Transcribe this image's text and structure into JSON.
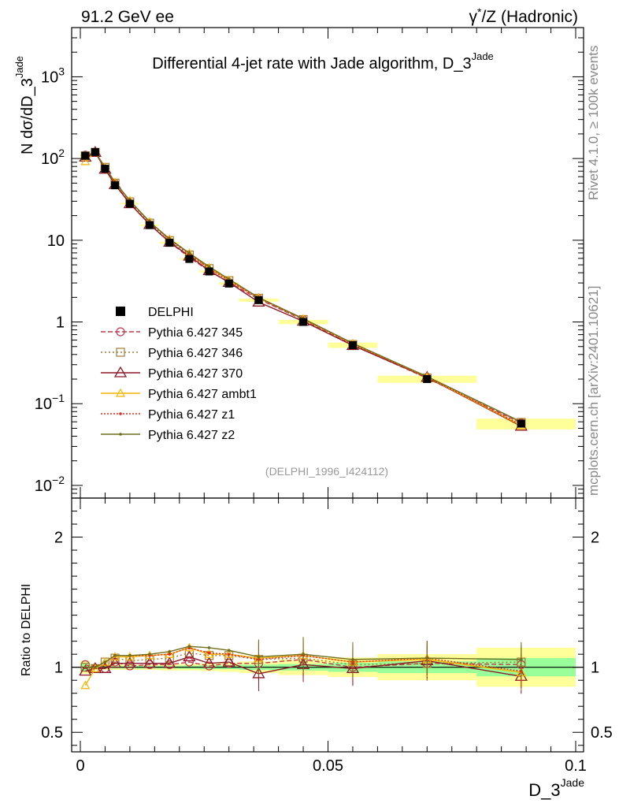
{
  "header": {
    "left": "91.2 GeV ee",
    "right_sup": "*",
    "right_main": "/Z (Hadronic)",
    "right_greek": "γ"
  },
  "side_labels": {
    "rivet": "Rivet 4.1.0, ≥ 100k events",
    "mcplots": "mcplots.cern.ch [arXiv:2401.10621]"
  },
  "colors": {
    "data": "#000000",
    "p345": "#c0394f",
    "p346": "#a47a33",
    "p370": "#8b1a26",
    "ambt1": "#f5b400",
    "z1": "#e52618",
    "z2": "#6e6e1e",
    "band_inner": "#99ff99",
    "band_outer": "#ffff99"
  },
  "chart_data": [
    {
      "type": "line",
      "panel": "main",
      "title": "Differential 4-jet rate with Jade algorithm, D_3",
      "title_sup": "Jade",
      "ylabel": "N  dσ/dD_3",
      "ylabel_sup": "Jade",
      "yscale": "log",
      "ylim": [
        0.007,
        4000
      ],
      "xlim": [
        -0.002,
        0.1
      ],
      "yticks": [
        {
          "v": 0.01,
          "base": "10",
          "exp": "−2"
        },
        {
          "v": 0.1,
          "base": "10",
          "exp": "−1"
        },
        {
          "v": 1,
          "base": "1",
          "exp": ""
        },
        {
          "v": 10,
          "base": "10",
          "exp": ""
        },
        {
          "v": 100,
          "base": "10",
          "exp": "2"
        },
        {
          "v": 1000,
          "base": "10",
          "exp": "3"
        }
      ],
      "annotation": "(DELPHI_1996_I424112)",
      "x": [
        0.001,
        0.003,
        0.005,
        0.007,
        0.01,
        0.014,
        0.018,
        0.022,
        0.026,
        0.03,
        0.036,
        0.045,
        0.055,
        0.07,
        0.089
      ],
      "data": {
        "name": "DELPHI",
        "values": [
          108,
          120,
          75,
          47,
          28,
          15.3,
          9.3,
          5.9,
          4.15,
          2.95,
          1.85,
          1.0,
          0.52,
          0.2,
          0.057
        ],
        "errors_rel": [
          0.04,
          0.02,
          0.02,
          0.02,
          0.02,
          0.02,
          0.02,
          0.02,
          0.03,
          0.03,
          0.03,
          0.04,
          0.05,
          0.06,
          0.09
        ]
      },
      "series": [
        {
          "name": "Pythia 6.427 345",
          "key": "p345",
          "dash": "6,3",
          "marker": "circle",
          "values": [
            110,
            119,
            74,
            49,
            28.2,
            15.6,
            9.5,
            6.15,
            4.2,
            3.05,
            1.9,
            1.06,
            0.52,
            0.205,
            0.058
          ]
        },
        {
          "name": "Pythia 6.427 346",
          "key": "p346",
          "dash": "2,3",
          "marker": "square",
          "values": [
            108,
            119,
            78,
            50,
            29.5,
            16.2,
            9.9,
            6.6,
            4.5,
            3.2,
            1.95,
            1.07,
            0.53,
            0.206,
            0.059
          ]
        },
        {
          "name": "Pythia 6.427 370",
          "key": "p370",
          "dash": "",
          "marker": "triangle",
          "values": [
            104,
            119,
            74,
            48,
            28.0,
            15.6,
            9.45,
            6.4,
            4.25,
            3.05,
            1.75,
            1.02,
            0.515,
            0.21,
            0.053
          ]
        },
        {
          "name": "Pythia 6.427 ambt1",
          "key": "ambt1",
          "dash": "",
          "marker": "triangle-small",
          "values": [
            92,
            119,
            78,
            51,
            30.5,
            16.8,
            10.3,
            6.9,
            4.6,
            3.25,
            1.98,
            1.09,
            0.54,
            0.213,
            0.054
          ]
        },
        {
          "name": "Pythia 6.427 z1",
          "key": "z1",
          "dash": "2,2",
          "marker": "dot",
          "values": [
            107,
            120,
            78,
            51.5,
            30.5,
            16.7,
            10.2,
            6.8,
            4.5,
            3.2,
            1.96,
            1.09,
            0.54,
            0.214,
            0.055
          ]
        },
        {
          "name": "Pythia 6.427 z2",
          "key": "z2",
          "dash": "",
          "marker": "dot",
          "values": [
            108,
            120,
            78,
            51.5,
            30.5,
            16.8,
            10.4,
            6.95,
            4.75,
            3.35,
            1.99,
            1.1,
            0.55,
            0.215,
            0.06
          ]
        }
      ]
    },
    {
      "type": "line",
      "panel": "ratio",
      "ylabel": "Ratio to DELPHI",
      "ylim": [
        0.35,
        2.3
      ],
      "yticks": [
        0.5,
        1,
        2
      ],
      "ytick_labels": [
        "0.5",
        "1",
        "2"
      ],
      "xlabel": "D_3",
      "xlabel_sup": "Jade",
      "xticks": [
        0,
        0.05,
        0.1
      ],
      "xtick_labels": [
        "0",
        "0.05",
        "0.1"
      ],
      "bands": [
        {
          "x0": 0.0,
          "x1": 0.002,
          "inner": 0.03,
          "outer": 0.05
        },
        {
          "x0": 0.002,
          "x1": 0.004,
          "inner": 0.01,
          "outer": 0.02
        },
        {
          "x0": 0.004,
          "x1": 0.006,
          "inner": 0.01,
          "outer": 0.02
        },
        {
          "x0": 0.006,
          "x1": 0.008,
          "inner": 0.01,
          "outer": 0.02
        },
        {
          "x0": 0.008,
          "x1": 0.012,
          "inner": 0.01,
          "outer": 0.02
        },
        {
          "x0": 0.012,
          "x1": 0.016,
          "inner": 0.01,
          "outer": 0.02
        },
        {
          "x0": 0.016,
          "x1": 0.02,
          "inner": 0.01,
          "outer": 0.025
        },
        {
          "x0": 0.02,
          "x1": 0.024,
          "inner": 0.012,
          "outer": 0.025
        },
        {
          "x0": 0.024,
          "x1": 0.028,
          "inner": 0.015,
          "outer": 0.03
        },
        {
          "x0": 0.028,
          "x1": 0.032,
          "inner": 0.015,
          "outer": 0.035
        },
        {
          "x0": 0.032,
          "x1": 0.04,
          "inner": 0.02,
          "outer": 0.045
        },
        {
          "x0": 0.04,
          "x1": 0.05,
          "inner": 0.025,
          "outer": 0.06
        },
        {
          "x0": 0.05,
          "x1": 0.06,
          "inner": 0.035,
          "outer": 0.075
        },
        {
          "x0": 0.06,
          "x1": 0.08,
          "inner": 0.045,
          "outer": 0.1
        },
        {
          "x0": 0.08,
          "x1": 0.1,
          "inner": 0.07,
          "outer": 0.15
        }
      ],
      "series": [
        {
          "key": "p345",
          "values": [
            1.02,
            0.99,
            0.99,
            1.04,
            1.01,
            1.02,
            1.02,
            1.04,
            1.01,
            1.03,
            1.03,
            1.06,
            1.0,
            1.03,
            1.02
          ]
        },
        {
          "key": "p346",
          "values": [
            1.0,
            0.99,
            1.04,
            1.07,
            1.05,
            1.06,
            1.07,
            1.11,
            1.09,
            1.09,
            1.06,
            1.07,
            1.02,
            1.03,
            1.04
          ]
        },
        {
          "key": "p370",
          "values": [
            0.97,
            0.99,
            0.99,
            1.03,
            1.03,
            1.03,
            1.03,
            1.08,
            1.03,
            1.04,
            0.95,
            1.02,
            0.99,
            1.05,
            0.93
          ]
        },
        {
          "key": "ambt1",
          "values": [
            0.86,
            0.99,
            1.04,
            1.08,
            1.08,
            1.09,
            1.1,
            1.15,
            1.1,
            1.1,
            1.07,
            1.09,
            1.04,
            1.06,
            0.96
          ]
        },
        {
          "key": "z1",
          "values": [
            1.0,
            1.0,
            1.04,
            1.09,
            1.09,
            1.09,
            1.1,
            1.15,
            1.11,
            1.1,
            1.06,
            1.09,
            1.04,
            1.07,
            0.97
          ]
        },
        {
          "key": "z2",
          "values": [
            1.0,
            1.0,
            1.04,
            1.09,
            1.09,
            1.1,
            1.12,
            1.16,
            1.15,
            1.13,
            1.08,
            1.1,
            1.06,
            1.07,
            1.06
          ]
        }
      ]
    }
  ]
}
